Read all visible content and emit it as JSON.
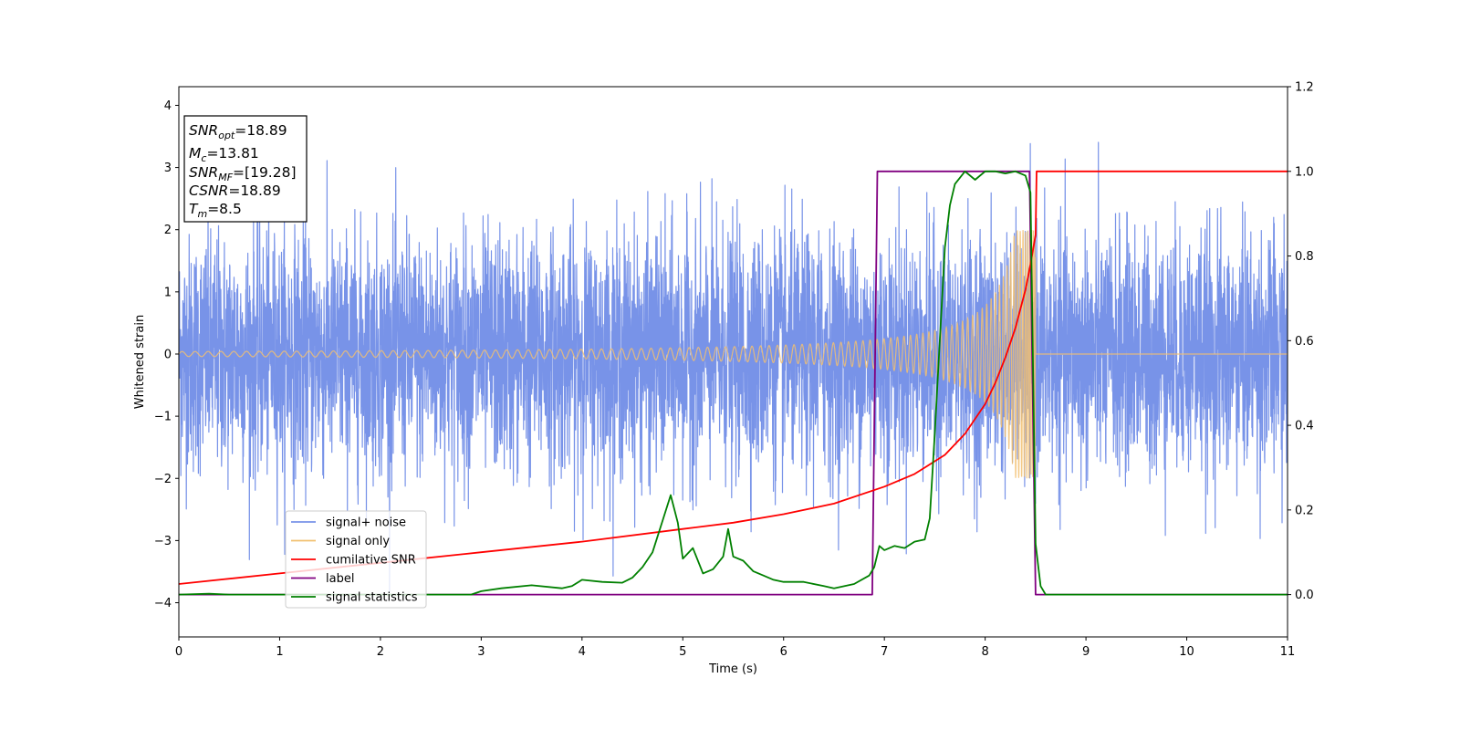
{
  "chart_data": {
    "type": "line",
    "xlabel": "Time (s)",
    "ylabel": "Whitened strain",
    "xlim": [
      0,
      11
    ],
    "ylim": [
      -4.55,
      4.3
    ],
    "y2lim": [
      -0.1,
      1.2
    ],
    "xticks": [
      0,
      1,
      2,
      3,
      4,
      5,
      6,
      7,
      8,
      9,
      10,
      11
    ],
    "yticks": [
      -4,
      -3,
      -2,
      -1,
      0,
      1,
      2,
      3,
      4
    ],
    "y2ticks": [
      "0.0",
      "0.2",
      "0.4",
      "0.6",
      "0.8",
      "1.0",
      "1.2"
    ],
    "legend_position": "lower-left",
    "annotation": {
      "lines": [
        {
          "sym": "SNR",
          "sub": "opt",
          "value": "=18.89"
        },
        {
          "sym": "M",
          "sub": "c",
          "value": "=13.81"
        },
        {
          "sym": "SNR",
          "sub": "MF",
          "value": "=[19.28]"
        },
        {
          "sym": "CSNR",
          "sub": "",
          "value": "=18.89"
        },
        {
          "sym": "T",
          "sub": "m",
          "value": "=8.5"
        }
      ]
    },
    "series": [
      {
        "name": "signal+ noise",
        "axis": "left",
        "color": "#7893e8",
        "kind": "noise",
        "noise_std": 0.95,
        "range_x": [
          0,
          11
        ],
        "approx_y_range": [
          -4.2,
          3.9
        ]
      },
      {
        "name": "signal only",
        "axis": "left",
        "color": "#f2c070",
        "kind": "chirp",
        "t_merger": 8.5,
        "amplitude_start": 0.04,
        "amplitude_peak": 2.0
      },
      {
        "name": "cumilative SNR",
        "axis": "right",
        "color": "#ff0000",
        "x": [
          0,
          1,
          2,
          3,
          4,
          5,
          5.5,
          6,
          6.5,
          7,
          7.3,
          7.6,
          7.8,
          8.0,
          8.1,
          8.2,
          8.3,
          8.4,
          8.45,
          8.5,
          8.51,
          11
        ],
        "y": [
          0.025,
          0.05,
          0.075,
          0.1,
          0.125,
          0.155,
          0.17,
          0.19,
          0.215,
          0.255,
          0.285,
          0.33,
          0.38,
          0.45,
          0.5,
          0.56,
          0.63,
          0.72,
          0.78,
          0.85,
          1.0,
          1.0
        ]
      },
      {
        "name": "label",
        "axis": "right",
        "color": "#800080",
        "x": [
          0,
          6.88,
          6.93,
          8.44,
          8.5,
          11
        ],
        "y": [
          0.0,
          0.0,
          1.0,
          1.0,
          0.0,
          0.0
        ]
      },
      {
        "name": "signal statistics",
        "axis": "right",
        "color": "#008000",
        "x": [
          0,
          0.3,
          0.5,
          1,
          2,
          2.9,
          3.0,
          3.2,
          3.5,
          3.8,
          3.9,
          4.0,
          4.2,
          4.4,
          4.5,
          4.6,
          4.7,
          4.8,
          4.88,
          4.95,
          5.0,
          5.1,
          5.2,
          5.3,
          5.4,
          5.45,
          5.5,
          5.6,
          5.7,
          5.8,
          5.9,
          6.0,
          6.2,
          6.4,
          6.5,
          6.7,
          6.85,
          6.9,
          6.95,
          7.0,
          7.1,
          7.2,
          7.3,
          7.4,
          7.45,
          7.5,
          7.55,
          7.6,
          7.65,
          7.7,
          7.8,
          7.9,
          8.0,
          8.1,
          8.2,
          8.3,
          8.4,
          8.45,
          8.5,
          8.55,
          8.6,
          9,
          10,
          11
        ],
        "y": [
          0.0,
          0.002,
          0.0,
          0.0,
          0.0,
          0.0,
          0.008,
          0.015,
          0.022,
          0.015,
          0.02,
          0.035,
          0.03,
          0.028,
          0.04,
          0.065,
          0.1,
          0.175,
          0.235,
          0.17,
          0.085,
          0.11,
          0.05,
          0.06,
          0.09,
          0.155,
          0.09,
          0.08,
          0.055,
          0.045,
          0.035,
          0.03,
          0.03,
          0.02,
          0.015,
          0.025,
          0.045,
          0.065,
          0.115,
          0.105,
          0.115,
          0.11,
          0.125,
          0.13,
          0.18,
          0.38,
          0.6,
          0.82,
          0.92,
          0.97,
          1.0,
          0.98,
          1.0,
          1.0,
          0.995,
          1.0,
          0.99,
          0.95,
          0.12,
          0.02,
          0.0,
          0.0,
          0.0,
          0.0
        ]
      }
    ]
  }
}
